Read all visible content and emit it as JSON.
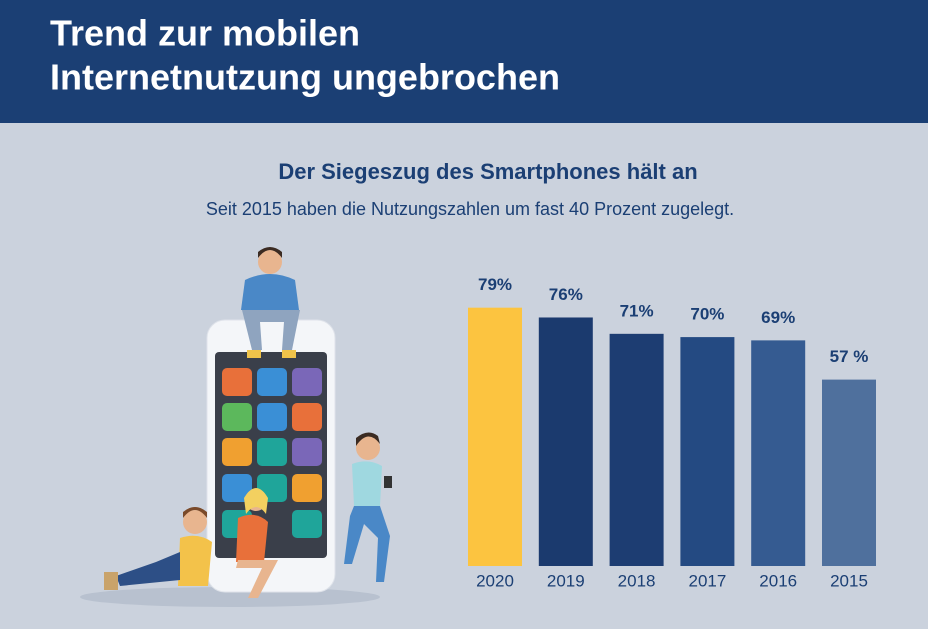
{
  "chart_data": {
    "type": "bar",
    "title": [
      "Trend zur mobilen",
      "Internetnutzung ungebrochen"
    ],
    "subtitle": "Der Siegeszug des Smartphones hält an",
    "description": "Seit 2015 haben die Nutzungszahlen um fast 40 Prozent zugelegt.",
    "categories": [
      "2020",
      "2019",
      "2018",
      "2017",
      "2016",
      "2015"
    ],
    "values": [
      79,
      76,
      71,
      70,
      69,
      57
    ],
    "value_labels": [
      "79%",
      "76%",
      "71%",
      "70%",
      "69%",
      "57 %"
    ],
    "colors": [
      "#fcc440",
      "#1b3a6e",
      "#1d3d72",
      "#244a82",
      "#355b91",
      "#4f709d"
    ]
  }
}
